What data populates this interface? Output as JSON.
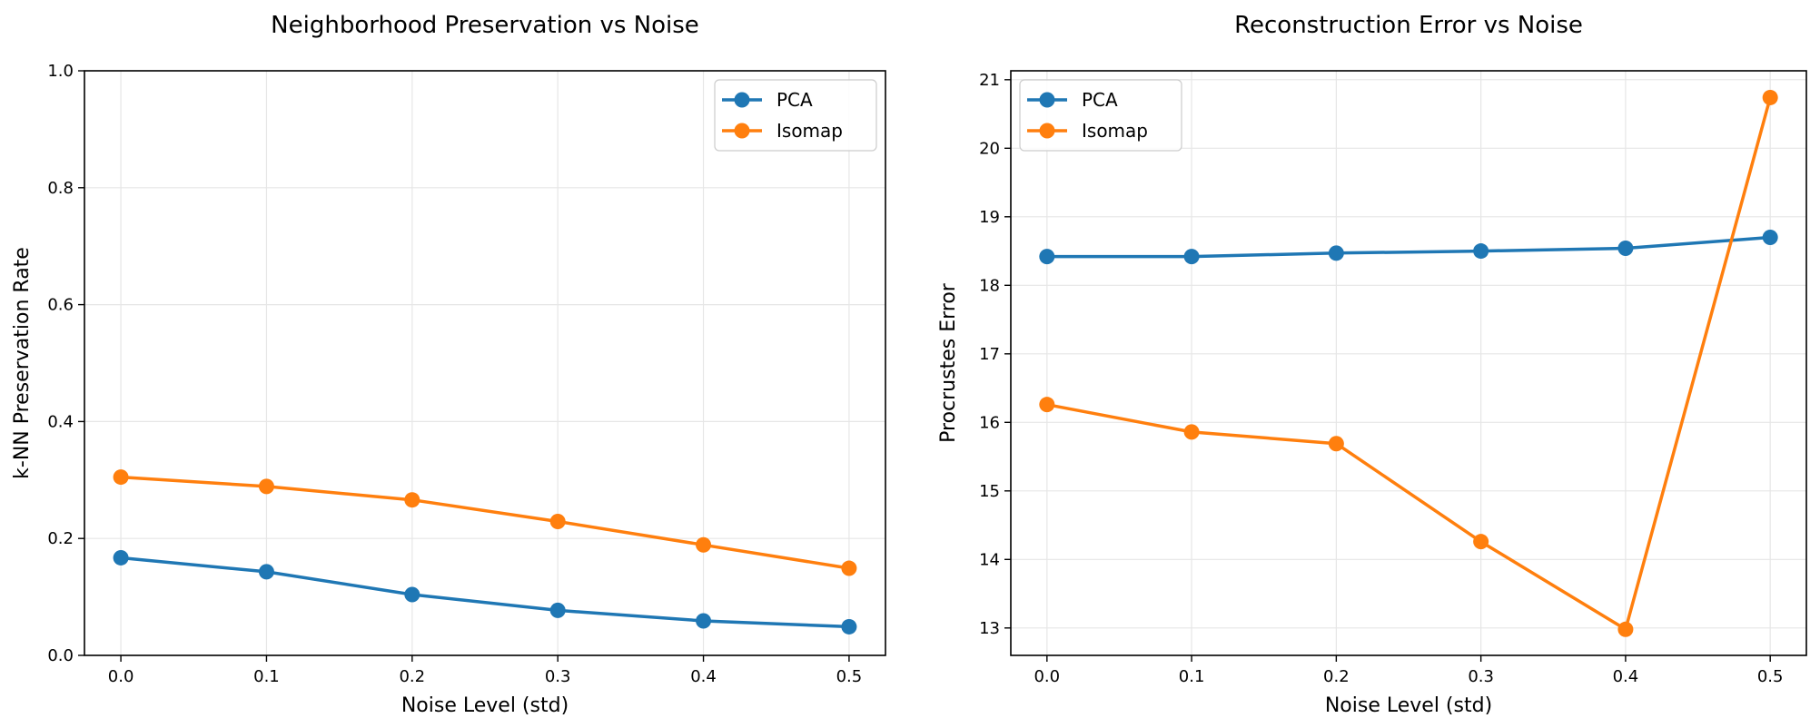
{
  "chart_data": [
    {
      "type": "line",
      "title": "Neighborhood Preservation vs Noise",
      "xlabel": "Noise Level (std)",
      "ylabel": "k-NN Preservation Rate",
      "x": [
        0.0,
        0.1,
        0.2,
        0.3,
        0.4,
        0.5
      ],
      "xlim": [
        -0.025,
        0.525
      ],
      "ylim": [
        0,
        1.0
      ],
      "xticks": [
        "0.0",
        "0.1",
        "0.2",
        "0.3",
        "0.4",
        "0.5"
      ],
      "yticks": [
        "0.0",
        "0.2",
        "0.4",
        "0.6",
        "0.8",
        "1.0"
      ],
      "grid": true,
      "legend_position": "top-right",
      "series": [
        {
          "name": "PCA",
          "color": "#1f77b4",
          "values": [
            0.167,
            0.143,
            0.104,
            0.077,
            0.059,
            0.049
          ]
        },
        {
          "name": "Isomap",
          "color": "#ff7f0e",
          "values": [
            0.305,
            0.289,
            0.266,
            0.229,
            0.189,
            0.149
          ]
        }
      ]
    },
    {
      "type": "line",
      "title": "Reconstruction Error vs Noise",
      "xlabel": "Noise Level (std)",
      "ylabel": "Procrustes Error",
      "x": [
        0.0,
        0.1,
        0.2,
        0.3,
        0.4,
        0.5
      ],
      "xlim": [
        -0.025,
        0.525
      ],
      "ylim": [
        12.6,
        21.13
      ],
      "xticks": [
        "0.0",
        "0.1",
        "0.2",
        "0.3",
        "0.4",
        "0.5"
      ],
      "yticks": [
        "13",
        "14",
        "15",
        "16",
        "17",
        "18",
        "19",
        "20",
        "21"
      ],
      "grid": true,
      "legend_position": "top-left",
      "series": [
        {
          "name": "PCA",
          "color": "#1f77b4",
          "values": [
            18.42,
            18.42,
            18.47,
            18.5,
            18.54,
            18.7
          ]
        },
        {
          "name": "Isomap",
          "color": "#ff7f0e",
          "values": [
            16.26,
            15.86,
            15.69,
            14.26,
            12.98,
            20.74
          ]
        }
      ]
    }
  ]
}
